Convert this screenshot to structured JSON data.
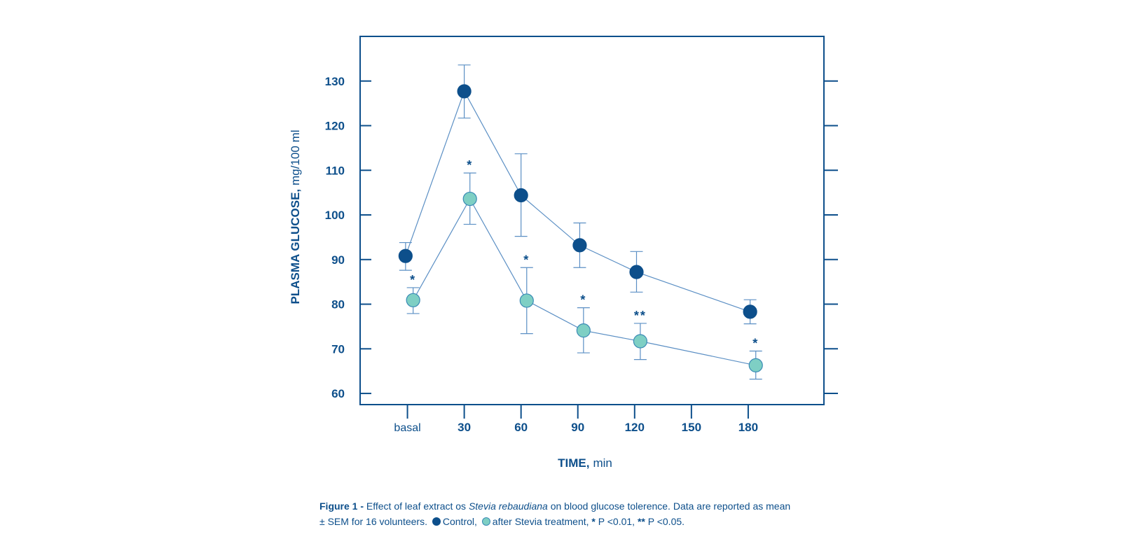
{
  "colors": {
    "axis": "#0d4f8b",
    "control": "#0d4f8b",
    "stevia": "#7ecfc4",
    "stevia_edge": "#3a8bb5",
    "line": "#5b8fc4"
  },
  "chart_data": {
    "type": "line",
    "xlabel_bold": "TIME,",
    "xlabel_unit": "min",
    "ylabel_bold": "PLASMA GLUCOSE,",
    "ylabel_unit": "mg/100 ml",
    "ylim": [
      57.5,
      140
    ],
    "xlim": [
      -25,
      220
    ],
    "yticks": [
      60,
      70,
      80,
      90,
      100,
      110,
      120,
      130
    ],
    "xticks": [
      {
        "value": 0,
        "label": "basal"
      },
      {
        "value": 30,
        "label": "30"
      },
      {
        "value": 60,
        "label": "60"
      },
      {
        "value": 90,
        "label": "90"
      },
      {
        "value": 120,
        "label": "120"
      },
      {
        "value": 150,
        "label": "150"
      },
      {
        "value": 180,
        "label": "180"
      }
    ],
    "series": [
      {
        "name": "Control",
        "points": [
          {
            "x": -1,
            "y": 90.8,
            "upper": 93.8,
            "lower": 87.6
          },
          {
            "x": 30,
            "y": 127.7,
            "upper": 133.6,
            "lower": 121.7
          },
          {
            "x": 60,
            "y": 104.4,
            "upper": 113.7,
            "lower": 95.2
          },
          {
            "x": 91,
            "y": 93.2,
            "upper": 98.2,
            "lower": 88.2
          },
          {
            "x": 121,
            "y": 87.2,
            "upper": 91.8,
            "lower": 82.7
          },
          {
            "x": 181,
            "y": 78.3,
            "upper": 81.0,
            "lower": 75.6
          }
        ]
      },
      {
        "name": "after Stevia treatment",
        "points": [
          {
            "x": 3,
            "y": 80.9,
            "upper": 83.7,
            "lower": 77.9,
            "sig": "*"
          },
          {
            "x": 33,
            "y": 103.6,
            "upper": 109.4,
            "lower": 97.9,
            "sig": "*"
          },
          {
            "x": 63,
            "y": 80.8,
            "upper": 88.2,
            "lower": 73.4,
            "sig": "*"
          },
          {
            "x": 93,
            "y": 74.1,
            "upper": 79.2,
            "lower": 69.1,
            "sig": "*"
          },
          {
            "x": 123,
            "y": 71.7,
            "upper": 75.7,
            "lower": 67.6,
            "sig": "**"
          },
          {
            "x": 184,
            "y": 66.3,
            "upper": 69.5,
            "lower": 63.2,
            "sig": "*"
          }
        ]
      }
    ]
  },
  "caption": {
    "label": "Figure 1 -",
    "text1": " Effect of leaf extract os ",
    "species": "Stevia rebaudiana",
    "text2": " on blood glucose tolerence. Data are reported as mean",
    "text3": "± SEM for 16 volunteers. ",
    "legend_control": "Control, ",
    "legend_stevia": "after Stevia treatment, ",
    "sig1_mark": "*",
    "sig1_text": " P <0.01, ",
    "sig2_mark": "**",
    "sig2_text": " P <0.05."
  }
}
